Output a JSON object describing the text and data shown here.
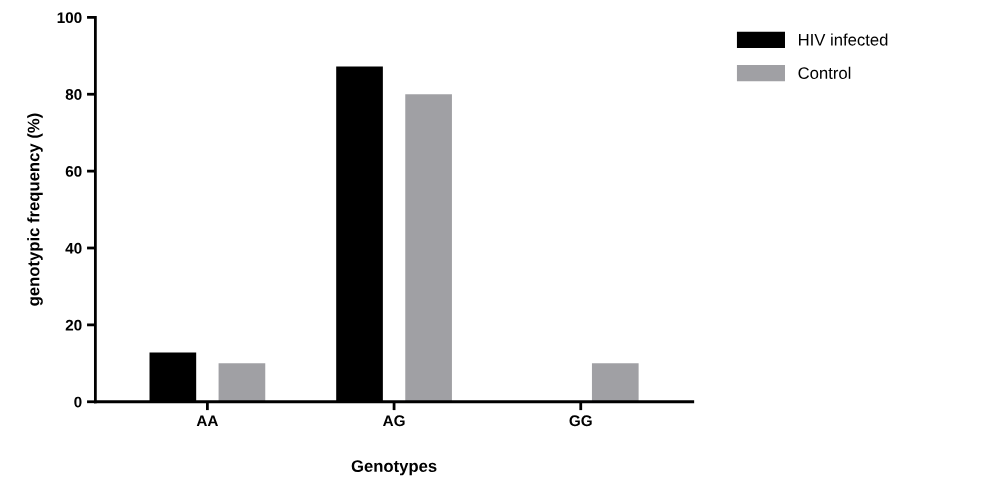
{
  "chart_data": {
    "type": "bar",
    "xlabel": "Genotypes",
    "ylabel": "genotypic frequency (%)",
    "categories": [
      "AA",
      "AG",
      "GG"
    ],
    "series": [
      {
        "name": "HIV infected",
        "color": "#000000",
        "values": [
          12.8,
          87.2,
          0
        ]
      },
      {
        "name": "Control",
        "color": "#a0a0a4",
        "values": [
          10,
          80,
          10
        ]
      }
    ],
    "ylim": [
      0,
      100
    ],
    "yticks": [
      0,
      20,
      40,
      60,
      80,
      100
    ],
    "grid": false,
    "legend": "top right"
  }
}
